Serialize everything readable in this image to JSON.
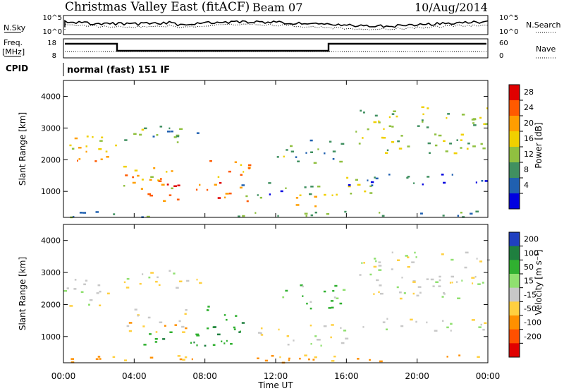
{
  "header": {
    "radar": "Christmas Valley East (fitACF)",
    "beam": "Beam 07",
    "date": "10/Aug/2014"
  },
  "noise_panel": {
    "left_label": "N.Sky",
    "right_label": "N.Search",
    "left_ticks": [
      "10^5",
      "10^0"
    ],
    "right_ticks": [
      "10^5",
      "10^0"
    ]
  },
  "freq_panel": {
    "label_line1": "Freq.",
    "label_line2": "[MHz]",
    "right_label": "Nave",
    "left_ticks": [
      "18",
      "8"
    ],
    "right_ticks": [
      "60",
      "0"
    ]
  },
  "cpid": {
    "label": "CPID",
    "value": "normal (fast) 151 IF"
  },
  "axes": {
    "ylabel": "Slant Range [km]",
    "y_ticks": [
      "4000",
      "3000",
      "2000",
      "1000"
    ],
    "x_ticks": [
      "00:00",
      "04:00",
      "08:00",
      "12:00",
      "16:00",
      "20:00",
      "00:00"
    ],
    "xlabel": "Time UT"
  },
  "colorbars": {
    "power": {
      "label": "Power [dB]",
      "ticks": [
        "28",
        "24",
        "20",
        "16",
        "12",
        "8",
        "4"
      ],
      "colors": [
        "#e00000",
        "#ff5a00",
        "#ff9e00",
        "#f0d000",
        "#90c040",
        "#409060",
        "#2060b0",
        "#0000e0"
      ]
    },
    "velocity": {
      "label": "Velocity [m s⁻¹]",
      "ticks": [
        "200",
        "100",
        "50",
        "15",
        "-15",
        "-50",
        "-100",
        "-200"
      ],
      "colors": [
        "#2040c0",
        "#1f7f3f",
        "#30b030",
        "#90e070",
        "#c8c8c8",
        "#ffd040",
        "#ff9000",
        "#ff5000",
        "#e00000"
      ]
    }
  },
  "chart_data": [
    {
      "type": "heatmap",
      "name": "power",
      "xlabel": "Time UT",
      "ylabel": "Slant Range [km]",
      "xlim_hours": [
        0,
        24
      ],
      "ylim_km": [
        180,
        4500
      ],
      "colorbar": {
        "label": "Power [dB]",
        "range": [
          0,
          30
        ]
      },
      "regions": [
        {
          "t0": 0.0,
          "t1": 3.0,
          "r0": 2150,
          "r1": 2850,
          "p": 16
        },
        {
          "t0": 0.0,
          "t1": 3.0,
          "r0": 1950,
          "r1": 2300,
          "p": 22
        },
        {
          "t0": 3.0,
          "t1": 8.0,
          "r0": 2500,
          "r1": 3100,
          "p": 12
        },
        {
          "t0": 3.0,
          "t1": 7.0,
          "r0": 1100,
          "r1": 1900,
          "p": 20
        },
        {
          "t0": 4.5,
          "t1": 10.5,
          "r0": 700,
          "r1": 1300,
          "p": 26
        },
        {
          "t0": 8.0,
          "t1": 10.5,
          "r0": 1300,
          "r1": 2000,
          "p": 22
        },
        {
          "t0": 10.0,
          "t1": 12.5,
          "r0": 800,
          "r1": 1300,
          "p": 8
        },
        {
          "t0": 12.0,
          "t1": 16.0,
          "r0": 1900,
          "r1": 2700,
          "p": 12
        },
        {
          "t0": 12.5,
          "t1": 17.5,
          "r0": 900,
          "r1": 1500,
          "p": 14
        },
        {
          "t0": 13.0,
          "t1": 15.0,
          "r0": 550,
          "r1": 900,
          "p": 24
        },
        {
          "t0": 16.5,
          "t1": 24.0,
          "r0": 2200,
          "r1": 3700,
          "p": 14
        },
        {
          "t0": 16.0,
          "t1": 24.0,
          "r0": 1200,
          "r1": 1600,
          "p": 6
        },
        {
          "t0": 0.0,
          "t1": 24.0,
          "r0": 200,
          "r1": 400,
          "p": 10
        }
      ]
    },
    {
      "type": "heatmap",
      "name": "velocity",
      "xlabel": "Time UT",
      "ylabel": "Slant Range [km]",
      "xlim_hours": [
        0,
        24
      ],
      "ylim_km": [
        180,
        4500
      ],
      "colorbar": {
        "label": "Velocity [m s⁻¹]",
        "range": [
          -200,
          200
        ]
      },
      "regions": [
        {
          "t0": 0.0,
          "t1": 3.0,
          "r0": 1950,
          "r1": 2850,
          "v": 0
        },
        {
          "t0": 3.0,
          "t1": 8.0,
          "r0": 2500,
          "r1": 3100,
          "v": 0
        },
        {
          "t0": 3.0,
          "t1": 7.0,
          "r0": 1100,
          "r1": 1900,
          "v": -30
        },
        {
          "t0": 4.0,
          "t1": 10.5,
          "r0": 700,
          "r1": 1300,
          "v": 60
        },
        {
          "t0": 8.0,
          "t1": 10.5,
          "r0": 1300,
          "r1": 2000,
          "v": 60
        },
        {
          "t0": 10.5,
          "t1": 16.0,
          "r0": 700,
          "r1": 1400,
          "v": 0
        },
        {
          "t0": 12.0,
          "t1": 16.0,
          "r0": 1900,
          "r1": 2700,
          "v": 30
        },
        {
          "t0": 16.5,
          "t1": 24.0,
          "r0": 2200,
          "r1": 3700,
          "v": 0
        },
        {
          "t0": 16.0,
          "t1": 24.0,
          "r0": 1200,
          "r1": 1600,
          "v": 0
        },
        {
          "t0": 0.0,
          "t1": 24.0,
          "r0": 200,
          "r1": 450,
          "v": -60
        }
      ]
    }
  ]
}
